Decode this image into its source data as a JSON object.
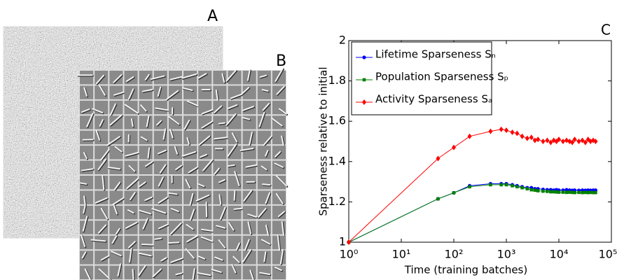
{
  "panels": {
    "a": "A",
    "b": "B"
  },
  "chart_data": {
    "type": "line",
    "panel_label": "C",
    "x_label": "Time (training batches)",
    "y_label": "Sparseness relative to initial",
    "x": [
      1,
      50,
      100,
      200,
      500,
      800,
      1000,
      1300,
      1600,
      2000,
      2500,
      3000,
      3500,
      4000,
      5000,
      6000,
      7000,
      8000,
      9000,
      10000,
      12000,
      14000,
      16000,
      18000,
      20000,
      24000,
      28000,
      32000,
      36000,
      40000,
      45000,
      50000
    ],
    "series": [
      {
        "name": "Lifetime Sparseness Sₙ",
        "color": "#0000ff",
        "marker": "circle",
        "values": [
          1,
          1.215,
          1.245,
          1.28,
          1.29,
          1.29,
          1.29,
          1.285,
          1.28,
          1.275,
          1.27,
          1.27,
          1.265,
          1.265,
          1.262,
          1.26,
          1.26,
          1.258,
          1.26,
          1.258,
          1.258,
          1.26,
          1.258,
          1.257,
          1.258,
          1.257,
          1.258,
          1.257,
          1.258,
          1.257,
          1.258,
          1.258
        ]
      },
      {
        "name": "Population Sparseness Sₚ",
        "color": "#008000",
        "marker": "square",
        "values": [
          1,
          1.215,
          1.245,
          1.275,
          1.285,
          1.285,
          1.285,
          1.28,
          1.275,
          1.27,
          1.265,
          1.26,
          1.258,
          1.255,
          1.253,
          1.252,
          1.25,
          1.25,
          1.249,
          1.248,
          1.248,
          1.247,
          1.248,
          1.247,
          1.246,
          1.247,
          1.246,
          1.247,
          1.246,
          1.247,
          1.246,
          1.246
        ]
      },
      {
        "name": "Activity Sparseness Sₐ",
        "color": "#ff0000",
        "marker": "diamond",
        "values": [
          1,
          1.415,
          1.47,
          1.525,
          1.55,
          1.56,
          1.555,
          1.545,
          1.54,
          1.525,
          1.515,
          1.52,
          1.505,
          1.51,
          1.5,
          1.505,
          1.495,
          1.505,
          1.5,
          1.51,
          1.5,
          1.505,
          1.5,
          1.495,
          1.51,
          1.5,
          1.505,
          1.495,
          1.51,
          1.5,
          1.505,
          1.5
        ]
      }
    ],
    "xscale": "log",
    "xlim": [
      1,
      100000
    ],
    "xticks": [
      {
        "value": 1,
        "label": "10⁰"
      },
      {
        "value": 10,
        "label": "10¹"
      },
      {
        "value": 100,
        "label": "10²"
      },
      {
        "value": 1000,
        "label": "10³"
      },
      {
        "value": 10000,
        "label": "10⁴"
      },
      {
        "value": 100000,
        "label": "10⁵"
      }
    ],
    "ylim": [
      1,
      2
    ],
    "yticks": [
      1,
      1.2,
      1.4,
      1.6,
      1.8,
      2
    ],
    "legend": "upper left",
    "grid": false
  }
}
